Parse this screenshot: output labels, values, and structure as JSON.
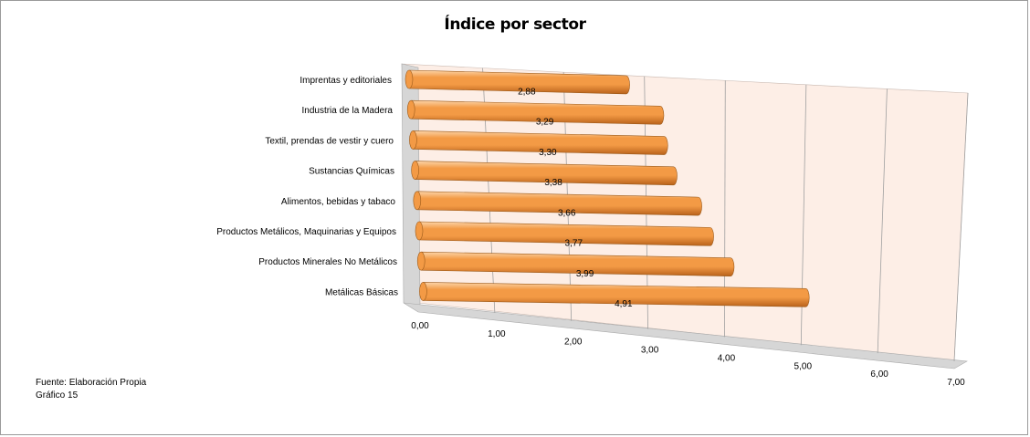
{
  "footnote": {
    "source": "Fuente: Elaboración Propia",
    "figure": "Gráfico  15"
  },
  "chart_data": {
    "type": "bar",
    "orientation": "horizontal",
    "style": "3d-cylinder",
    "title": "Índice por sector",
    "xlabel": "",
    "ylabel": "",
    "categories": [
      "Imprentas y editoriales",
      "Industria de la Madera",
      "Textil, prendas de vestir y cuero",
      "Sustancias Químicas",
      "Alimentos, bebidas y tabaco",
      "Productos Metálicos, Maquinarias  y Equipos",
      "Productos Minerales No Metálicos",
      "Metálicas Básicas"
    ],
    "values": [
      2.88,
      3.29,
      3.3,
      3.38,
      3.66,
      3.77,
      3.99,
      4.91
    ],
    "value_labels": [
      "2,88",
      "3,29",
      "3,30",
      "3,38",
      "3,66",
      "3,77",
      "3,99",
      "4,91"
    ],
    "xlim": [
      0,
      7
    ],
    "xticks": [
      "0,00",
      "1,00",
      "2,00",
      "3,00",
      "4,00",
      "5,00",
      "6,00",
      "7,00"
    ],
    "grid": true,
    "legend": "none",
    "colors": {
      "bar": "#f39a45",
      "bar_highlight": "#fcd4a8",
      "bar_shadow": "#b9621b",
      "wall": "#fdeee6",
      "floor": "#d6d6d6",
      "gridline": "#a0a0a0"
    }
  }
}
